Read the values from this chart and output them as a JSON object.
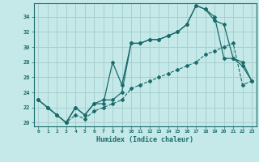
{
  "xlabel": "Humidex (Indice chaleur)",
  "background_color": "#c5e8e8",
  "grid_color": "#a8d0d0",
  "line_color": "#1a6b6b",
  "xlim": [
    -0.5,
    23.5
  ],
  "ylim": [
    19.5,
    35.8
  ],
  "yticks": [
    20,
    22,
    24,
    26,
    28,
    30,
    32,
    34
  ],
  "xticks": [
    0,
    1,
    2,
    3,
    4,
    5,
    6,
    7,
    8,
    9,
    10,
    11,
    12,
    13,
    14,
    15,
    16,
    17,
    18,
    19,
    20,
    21,
    22,
    23
  ],
  "line1_x": [
    0,
    1,
    2,
    3,
    4,
    5,
    6,
    7,
    8,
    9,
    10,
    11,
    12,
    13,
    14,
    15,
    16,
    17,
    18,
    19,
    20,
    21,
    22,
    23
  ],
  "line1_y": [
    23,
    22,
    21,
    20,
    22,
    21,
    22.5,
    23,
    23,
    24,
    30.5,
    30.5,
    31,
    31,
    31.5,
    32,
    33,
    35.5,
    35,
    34,
    28.5,
    28.5,
    27.5,
    25.5
  ],
  "line2_x": [
    0,
    1,
    2,
    3,
    4,
    5,
    6,
    7,
    8,
    9,
    10,
    11,
    12,
    13,
    14,
    15,
    16,
    17,
    18,
    19,
    20,
    21,
    22,
    23
  ],
  "line2_y": [
    23,
    22,
    21,
    20,
    22,
    21,
    22.5,
    22.5,
    28,
    25,
    30.5,
    30.5,
    31,
    31,
    31.5,
    32,
    33,
    35.5,
    35,
    33.5,
    33,
    28.5,
    28,
    25.5
  ],
  "line3_x": [
    0,
    1,
    2,
    3,
    4,
    5,
    6,
    7,
    8,
    9,
    10,
    11,
    12,
    13,
    14,
    15,
    16,
    17,
    18,
    19,
    20,
    21,
    22,
    23
  ],
  "line3_y": [
    23,
    22,
    21,
    20,
    21,
    20.5,
    21.5,
    22,
    22.5,
    23,
    24.5,
    25,
    25.5,
    26,
    26.5,
    27,
    27.5,
    28,
    29,
    29.5,
    30,
    30.5,
    25,
    25.5
  ]
}
